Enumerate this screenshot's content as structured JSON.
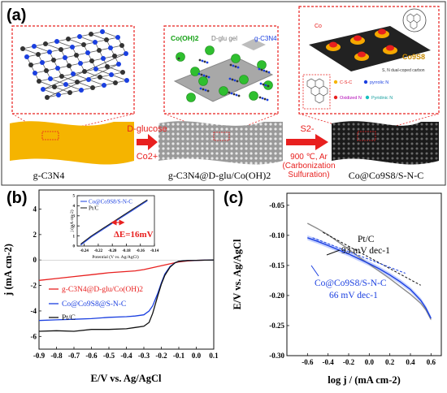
{
  "panel_a": {
    "label": "(a)",
    "materials": [
      {
        "name": "g-C3N4"
      },
      {
        "name": "g-C3N4@D-glu/Co(OH)2"
      },
      {
        "name": "Co@Co9S8/S-N-C"
      }
    ],
    "arrow1": {
      "top": "D-glucose",
      "bottom": "Co2+"
    },
    "arrow2": {
      "top": "S2-",
      "line1": "900 ℃, Ar",
      "line2": "(Carbonization",
      "line3": "Sulfuration)"
    },
    "box2_labels": {
      "co_oh2": "Co(OH)2",
      "dglu": "D-glu gel",
      "gc3n4": "g-C3N4"
    },
    "box3_labels": {
      "co": "Co",
      "co9s8": "Co9S8",
      "sn": "S, N dual-coped carbon"
    },
    "legend": {
      "cs": "C-S-C",
      "pyrrolic": "pyrrolic N",
      "oxidized": "Oxidized N",
      "pyridinic": "Pyridinic N"
    }
  },
  "panel_b": {
    "label": "(b)",
    "ylabel": "j (mA cm-2)",
    "xlabel": "E/V vs. Ag/AgCl",
    "x_ticks": [
      "-0.9",
      "-0.8",
      "-0.7",
      "-0.6",
      "-0.5",
      "-0.4",
      "-0.3",
      "-0.2",
      "-0.1",
      "0.0",
      "0.1"
    ],
    "y_ticks": [
      "4",
      "2",
      "0",
      "-2",
      "-4",
      "-6"
    ],
    "legend": [
      "g-C3N4@D-glu/Co(OH)2",
      "Co@Co9S8@S-N-C",
      "Pt/C"
    ],
    "inset": {
      "legend": [
        "Co@Co9S8/S-N-C",
        "Pt/C"
      ],
      "annotation": "ΔE=16mV",
      "xlabel": "Potential (V vs. Ag/AgCl)",
      "ylabel": "j (mA cm-2)",
      "x_ticks": [
        "-0.24",
        "-0.22",
        "-0.20",
        "-0.18",
        "-0.16",
        "-0.14"
      ],
      "y_ticks": [
        "0",
        "1",
        "2",
        "3",
        "4",
        "5"
      ]
    }
  },
  "panel_c": {
    "label": "(c)",
    "ylabel": "E/V vs. Ag/AgCl",
    "xlabel": "log j / (mA cm-2)",
    "x_ticks": [
      "-0.6",
      "-0.4",
      "-0.2",
      "0.0",
      "0.2",
      "0.4",
      "0.6"
    ],
    "y_ticks": [
      "-0.05",
      "-0.10",
      "-0.15",
      "-0.20",
      "-0.25",
      "-0.30"
    ],
    "annotations": {
      "ptc_name": "Pt/C",
      "ptc_slope": "93 mV dec-1",
      "co_name": "Co@Co9S8/S-N-C",
      "co_slope": "66 mV dec-1"
    }
  },
  "colors": {
    "red": "#e8201f",
    "blue": "#1a3fe0",
    "black": "#111111",
    "gold": "#f5b400",
    "gray": "#8c8c8c",
    "violet": "#b000b5"
  },
  "chart_data": [
    {
      "type": "line",
      "xlabel": "E/V vs. Ag/AgCl",
      "ylabel": "j (mA cm-2)",
      "xlim": [
        -0.9,
        0.1
      ],
      "ylim": [
        -7,
        5.5
      ],
      "series": [
        {
          "name": "g-C3N4@D-glu/Co(OH)2",
          "color": "#e8201f",
          "x": [
            -0.9,
            -0.8,
            -0.7,
            -0.6,
            -0.5,
            -0.4,
            -0.35,
            -0.3,
            -0.25,
            -0.2,
            -0.15,
            -0.1,
            -0.05,
            0.0,
            0.05,
            0.1
          ],
          "y": [
            -1.6,
            -1.45,
            -1.3,
            -1.15,
            -1.0,
            -0.9,
            -0.85,
            -0.75,
            -0.6,
            -0.45,
            -0.3,
            -0.15,
            -0.07,
            -0.03,
            -0.01,
            0.0
          ]
        },
        {
          "name": "Co@Co9S8@S-N-C",
          "color": "#1a3fe0",
          "x": [
            -0.9,
            -0.8,
            -0.7,
            -0.6,
            -0.5,
            -0.4,
            -0.35,
            -0.3,
            -0.27,
            -0.25,
            -0.22,
            -0.2,
            -0.18,
            -0.15,
            -0.12,
            -0.1,
            -0.05,
            0.0,
            0.05,
            0.1
          ],
          "y": [
            -4.75,
            -4.7,
            -4.65,
            -4.6,
            -4.5,
            -4.45,
            -4.4,
            -4.3,
            -4.0,
            -3.6,
            -2.6,
            -1.8,
            -1.1,
            -0.5,
            -0.2,
            -0.1,
            -0.04,
            -0.02,
            -0.01,
            0.0
          ]
        },
        {
          "name": "Pt/C",
          "color": "#111111",
          "x": [
            -0.9,
            -0.8,
            -0.7,
            -0.6,
            -0.5,
            -0.4,
            -0.35,
            -0.3,
            -0.27,
            -0.25,
            -0.22,
            -0.2,
            -0.18,
            -0.15,
            -0.12,
            -0.1,
            -0.05,
            0.0,
            0.05,
            0.1
          ],
          "y": [
            -5.6,
            -5.55,
            -5.6,
            -5.45,
            -5.45,
            -5.4,
            -5.3,
            -5.2,
            -4.9,
            -4.2,
            -2.8,
            -1.9,
            -1.2,
            -0.55,
            -0.2,
            -0.1,
            -0.04,
            -0.02,
            -0.01,
            0.0
          ]
        }
      ]
    },
    {
      "type": "line",
      "xlabel": "Potential (V vs. Ag/AgCl)",
      "ylabel": "j (mA cm-2)",
      "xlim": [
        -0.25,
        -0.14
      ],
      "ylim": [
        0,
        5
      ],
      "series": [
        {
          "name": "Co@Co9S8/S-N-C",
          "color": "#1a3fe0",
          "x": [
            -0.245,
            -0.23,
            -0.21,
            -0.19,
            -0.17,
            -0.15
          ],
          "y": [
            0.1,
            0.9,
            1.8,
            2.7,
            3.6,
            4.5
          ]
        },
        {
          "name": "Pt/C",
          "color": "#111111",
          "x": [
            -0.245,
            -0.23,
            -0.21,
            -0.19,
            -0.17,
            -0.15
          ],
          "y": [
            0.2,
            1.0,
            1.9,
            2.8,
            3.7,
            4.6
          ]
        }
      ]
    },
    {
      "type": "line",
      "xlabel": "log j / (mA cm-2)",
      "ylabel": "E/V vs. Ag/AgCl",
      "xlim": [
        -0.8,
        0.7
      ],
      "ylim": [
        -0.3,
        -0.03
      ],
      "series": [
        {
          "name": "Pt/C",
          "color": "#8c8c8c",
          "x": [
            -0.6,
            -0.5,
            -0.4,
            -0.3,
            -0.2,
            -0.1,
            0.0,
            0.1,
            0.2,
            0.3,
            0.4,
            0.5,
            0.55,
            0.6
          ],
          "y": [
            -0.08,
            -0.089,
            -0.099,
            -0.111,
            -0.123,
            -0.136,
            -0.148,
            -0.16,
            -0.172,
            -0.185,
            -0.198,
            -0.213,
            -0.224,
            -0.24
          ]
        },
        {
          "name": "Co@Co9S8/S-N-C",
          "color": "#1a3fe0",
          "x": [
            -0.6,
            -0.5,
            -0.4,
            -0.3,
            -0.2,
            -0.1,
            0.0,
            0.1,
            0.2,
            0.3,
            0.4,
            0.5,
            0.55,
            0.6
          ],
          "y": [
            -0.104,
            -0.11,
            -0.117,
            -0.124,
            -0.131,
            -0.139,
            -0.147,
            -0.156,
            -0.166,
            -0.177,
            -0.19,
            -0.208,
            -0.221,
            -0.238
          ]
        }
      ]
    }
  ]
}
